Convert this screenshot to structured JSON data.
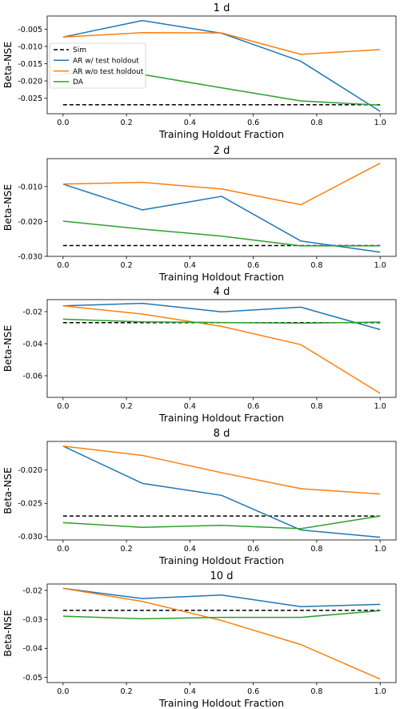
{
  "chart_data": [
    {
      "type": "line",
      "title": "1 d",
      "xlabel": "Training Holdout Fraction",
      "ylabel": "Beta-NSE",
      "x": [
        0.0,
        0.25,
        0.5,
        0.75,
        1.0
      ],
      "xlim": [
        -0.05,
        1.05
      ],
      "ylim": [
        -0.0295,
        -0.0012
      ],
      "xticks": [
        "0.0",
        "0.2",
        "0.4",
        "0.6",
        "0.8",
        "1.0"
      ],
      "yticks": [
        "-0.005",
        "-0.010",
        "-0.015",
        "-0.020",
        "-0.025"
      ],
      "legend": "upper-left",
      "series": [
        {
          "name": "Sim",
          "color": "#000000",
          "dashed": true,
          "values": [
            -0.0269,
            -0.0269,
            -0.0269,
            -0.0269,
            -0.0269
          ]
        },
        {
          "name": "AR w/ test holdout",
          "color": "#1f77b4",
          "values": [
            -0.0073,
            -0.0025,
            -0.0062,
            -0.0143,
            -0.0288
          ]
        },
        {
          "name": "AR w/o test holdout",
          "color": "#ff7f0e",
          "values": [
            -0.0073,
            -0.006,
            -0.0061,
            -0.0123,
            -0.0109
          ]
        },
        {
          "name": "DA",
          "color": "#2ca02c",
          "values": [
            -0.0178,
            -0.0181,
            -0.022,
            -0.0258,
            -0.027
          ]
        }
      ]
    },
    {
      "type": "line",
      "title": "2 d",
      "xlabel": "Training Holdout Fraction",
      "ylabel": "Beta-NSE",
      "x": [
        0.0,
        0.25,
        0.5,
        0.75,
        1.0
      ],
      "xlim": [
        -0.05,
        1.05
      ],
      "ylim": [
        -0.03,
        -0.002
      ],
      "xticks": [
        "0.0",
        "0.2",
        "0.4",
        "0.6",
        "0.8",
        "1.0"
      ],
      "yticks": [
        "-0.010",
        "-0.020",
        "-0.030"
      ],
      "series": [
        {
          "name": "Sim",
          "color": "#000000",
          "dashed": true,
          "values": [
            -0.0269,
            -0.0269,
            -0.0269,
            -0.0269,
            -0.0269
          ]
        },
        {
          "name": "AR w/ test holdout",
          "color": "#1f77b4",
          "values": [
            -0.0093,
            -0.0167,
            -0.0128,
            -0.0256,
            -0.0288
          ]
        },
        {
          "name": "AR w/o test holdout",
          "color": "#ff7f0e",
          "values": [
            -0.0093,
            -0.0088,
            -0.0107,
            -0.0152,
            -0.0033
          ]
        },
        {
          "name": "DA",
          "color": "#2ca02c",
          "values": [
            -0.0199,
            -0.0222,
            -0.0242,
            -0.027,
            -0.027
          ]
        }
      ]
    },
    {
      "type": "line",
      "title": "4 d",
      "xlabel": "Training Holdout Fraction",
      "ylabel": "Beta-NSE",
      "x": [
        0.0,
        0.25,
        0.5,
        0.75,
        1.0
      ],
      "xlim": [
        -0.05,
        1.05
      ],
      "ylim": [
        -0.0735,
        -0.0125
      ],
      "xticks": [
        "0.0",
        "0.2",
        "0.4",
        "0.6",
        "0.8",
        "1.0"
      ],
      "yticks": [
        "-0.02",
        "-0.04",
        "-0.06"
      ],
      "series": [
        {
          "name": "Sim",
          "color": "#000000",
          "dashed": true,
          "values": [
            -0.0269,
            -0.0269,
            -0.0269,
            -0.0269,
            -0.0269
          ]
        },
        {
          "name": "AR w/ test holdout",
          "color": "#1f77b4",
          "values": [
            -0.0164,
            -0.0148,
            -0.0201,
            -0.0172,
            -0.0312
          ]
        },
        {
          "name": "AR w/o test holdout",
          "color": "#ff7f0e",
          "values": [
            -0.0164,
            -0.0215,
            -0.0292,
            -0.0406,
            -0.071
          ]
        },
        {
          "name": "DA",
          "color": "#2ca02c",
          "values": [
            -0.0247,
            -0.0264,
            -0.0268,
            -0.0272,
            -0.0265
          ]
        }
      ]
    },
    {
      "type": "line",
      "title": "8 d",
      "xlabel": "Training Holdout Fraction",
      "ylabel": "Beta-NSE",
      "x": [
        0.0,
        0.25,
        0.5,
        0.75,
        1.0
      ],
      "xlim": [
        -0.05,
        1.05
      ],
      "ylim": [
        -0.0305,
        -0.0157
      ],
      "xticks": [
        "0.0",
        "0.2",
        "0.4",
        "0.6",
        "0.8",
        "1.0"
      ],
      "yticks": [
        "-0.020",
        "-0.025",
        "-0.030"
      ],
      "series": [
        {
          "name": "Sim",
          "color": "#000000",
          "dashed": true,
          "values": [
            -0.0269,
            -0.0269,
            -0.0269,
            -0.0269,
            -0.0269
          ]
        },
        {
          "name": "AR w/ test holdout",
          "color": "#1f77b4",
          "values": [
            -0.0164,
            -0.022,
            -0.0238,
            -0.029,
            -0.0301
          ]
        },
        {
          "name": "AR w/o test holdout",
          "color": "#ff7f0e",
          "values": [
            -0.0164,
            -0.0178,
            -0.0204,
            -0.0228,
            -0.0236
          ]
        },
        {
          "name": "DA",
          "color": "#2ca02c",
          "values": [
            -0.0279,
            -0.0286,
            -0.0283,
            -0.0288,
            -0.0269
          ]
        }
      ]
    },
    {
      "type": "line",
      "title": "10 d",
      "xlabel": "Training Holdout Fraction",
      "ylabel": "Beta-NSE",
      "x": [
        0.0,
        0.25,
        0.5,
        0.75,
        1.0
      ],
      "xlim": [
        -0.05,
        1.05
      ],
      "ylim": [
        -0.0518,
        -0.0178
      ],
      "xticks": [
        "0.0",
        "0.2",
        "0.4",
        "0.6",
        "0.8",
        "1.0"
      ],
      "yticks": [
        "-0.02",
        "-0.03",
        "-0.04",
        "-0.05"
      ],
      "series": [
        {
          "name": "Sim",
          "color": "#000000",
          "dashed": true,
          "values": [
            -0.0269,
            -0.0269,
            -0.0269,
            -0.0269,
            -0.0269
          ]
        },
        {
          "name": "AR w/ test holdout",
          "color": "#1f77b4",
          "values": [
            -0.0193,
            -0.0228,
            -0.0216,
            -0.0256,
            -0.0248
          ]
        },
        {
          "name": "AR w/o test holdout",
          "color": "#ff7f0e",
          "values": [
            -0.0193,
            -0.0238,
            -0.0304,
            -0.0387,
            -0.0506
          ]
        },
        {
          "name": "DA",
          "color": "#2ca02c",
          "values": [
            -0.0289,
            -0.0298,
            -0.0293,
            -0.0293,
            -0.027
          ]
        }
      ]
    }
  ]
}
